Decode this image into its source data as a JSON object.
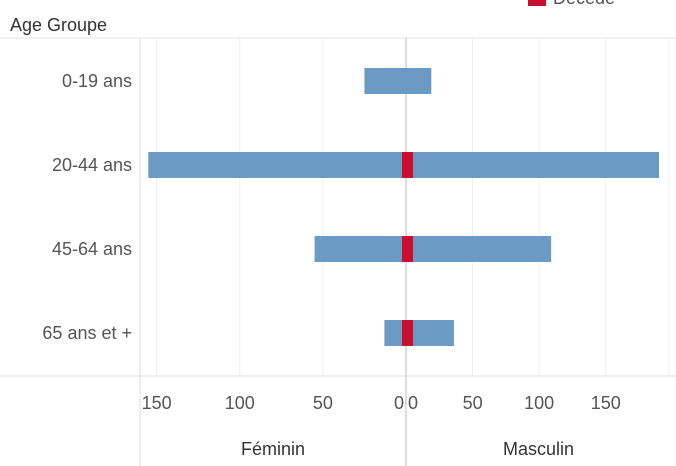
{
  "chart_data": {
    "type": "bar",
    "orientation": "horizontal",
    "layout": "back-to-back (butterfly)",
    "ylabel": "Age Groupe",
    "categories": [
      "0-19 ans",
      "20-44 ans",
      "45-64 ans",
      "65 ans et +"
    ],
    "panels": [
      {
        "name": "Féminin",
        "xlim": [
          0,
          160
        ],
        "reversed": true,
        "ticks": [
          0,
          50,
          100,
          150
        ],
        "tick_labels": [
          "0",
          "50",
          "100",
          "150"
        ],
        "series": [
          {
            "name": "",
            "color": "#6b9bc3",
            "values": [
              25,
              155,
              55,
              13
            ]
          },
          {
            "name": "Décédé",
            "color": "#c8102e",
            "values": [
              0,
              1,
              1,
              2
            ]
          }
        ]
      },
      {
        "name": "Masculin",
        "xlim": [
          0,
          190
        ],
        "reversed": false,
        "ticks": [
          0,
          50,
          100,
          150
        ],
        "tick_labels": [
          "0",
          "50",
          "100",
          "150"
        ],
        "series": [
          {
            "name": "",
            "color": "#6b9bc3",
            "values": [
              19,
              190,
              109,
              36
            ]
          },
          {
            "name": "Décédé",
            "color": "#c8102e",
            "values": [
              0,
              5,
              5,
              5
            ]
          }
        ]
      }
    ],
    "legend": {
      "placement": "top-right",
      "entries": [
        {
          "label": "Décédé",
          "color": "#c8102e"
        }
      ]
    },
    "grid": true
  }
}
